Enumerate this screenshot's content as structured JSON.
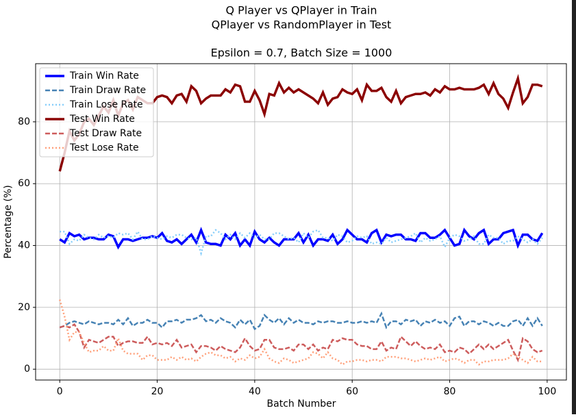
{
  "chart_data": {
    "type": "line",
    "title": [
      "Q Player vs QPlayer in Train",
      "QPlayer vs RandomPlayer in Test",
      "Epsilon = 0.7, Batch Size = 1000"
    ],
    "x_label": "Batch Number",
    "y_label": "Percentage (%)",
    "xlim": [
      -4.95,
      103.95
    ],
    "ylim": [
      -3.5,
      98.8
    ],
    "xticks": [
      0,
      20,
      40,
      60,
      80,
      100
    ],
    "yticks": [
      0,
      20,
      40,
      60,
      80
    ],
    "grid": true,
    "legend": "upper left",
    "x": [
      0,
      1,
      2,
      3,
      4,
      5,
      6,
      7,
      8,
      9,
      10,
      11,
      12,
      13,
      14,
      15,
      16,
      17,
      18,
      19,
      20,
      21,
      22,
      23,
      24,
      25,
      26,
      27,
      28,
      29,
      30,
      31,
      32,
      33,
      34,
      35,
      36,
      37,
      38,
      39,
      40,
      41,
      42,
      43,
      44,
      45,
      46,
      47,
      48,
      49,
      50,
      51,
      52,
      53,
      54,
      55,
      56,
      57,
      58,
      59,
      60,
      61,
      62,
      63,
      64,
      65,
      66,
      67,
      68,
      69,
      70,
      71,
      72,
      73,
      74,
      75,
      76,
      77,
      78,
      79,
      80,
      81,
      82,
      83,
      84,
      85,
      86,
      87,
      88,
      89,
      90,
      91,
      92,
      93,
      94,
      95,
      96,
      97,
      98,
      99
    ],
    "series": [
      {
        "name": "Train Win Rate",
        "color": "#0000ff",
        "style": "solid",
        "values": [
          42,
          41,
          44,
          43,
          43.5,
          42,
          42.5,
          42.5,
          42,
          42,
          43.5,
          43,
          39.5,
          42,
          42,
          41.5,
          42,
          42.5,
          42.5,
          43,
          42.5,
          44,
          41.5,
          41,
          42,
          40.5,
          42,
          43.5,
          41,
          45,
          41,
          40.5,
          40.5,
          40,
          43.5,
          42,
          44,
          40,
          42,
          40,
          44.5,
          42,
          41,
          42.5,
          41,
          40,
          42,
          42,
          42,
          44,
          41,
          43.5,
          40,
          42,
          42,
          41.5,
          43.5,
          40.5,
          42,
          45,
          43.5,
          42,
          42,
          41,
          44,
          45,
          41,
          43.5,
          43,
          43.5,
          43.5,
          42,
          42,
          41.5,
          44,
          44,
          42.5,
          42.5,
          43.5,
          45,
          42.5,
          40,
          40.5,
          45,
          43,
          42,
          44,
          45,
          40.5,
          42,
          42,
          44,
          44.5,
          45,
          40,
          43.5,
          43.5,
          42,
          41.5,
          44
        ]
      },
      {
        "name": "Train Draw Rate",
        "color": "#4682b4",
        "style": "dashed",
        "values": [
          13.5,
          14,
          15,
          15.5,
          15,
          14.5,
          15.5,
          15,
          14.5,
          15,
          15,
          14.5,
          16,
          14.5,
          16.5,
          14,
          15,
          15,
          16,
          15,
          15,
          13.5,
          15.5,
          15.5,
          16,
          15,
          16,
          16,
          16.5,
          17.5,
          15.5,
          16,
          15,
          16.5,
          15.5,
          15,
          13.5,
          16,
          14.5,
          16,
          13,
          14,
          17.5,
          16,
          15,
          16.5,
          14.5,
          16.5,
          15,
          16,
          15,
          15,
          14.5,
          15.5,
          15,
          15.5,
          15.5,
          15,
          15,
          15.5,
          15,
          15,
          15.5,
          15,
          15.5,
          15,
          18,
          13.5,
          15.5,
          15.5,
          14.5,
          16,
          15.5,
          16,
          14,
          15.5,
          15,
          16,
          15,
          15.5,
          14,
          16.5,
          17,
          14,
          15.5,
          15.5,
          14.5,
          15.5,
          15,
          14,
          15,
          14,
          14,
          15.5,
          16,
          14,
          16.5,
          14,
          16.5,
          14
        ]
      },
      {
        "name": "Train Lose Rate",
        "color": "#87cefa",
        "style": "dotted",
        "values": [
          44.5,
          44.5,
          40.5,
          42,
          41.5,
          43.5,
          42.5,
          42,
          43.5,
          42.5,
          43,
          42.5,
          44,
          43.5,
          44,
          42,
          44.5,
          42,
          42,
          43,
          42.5,
          42,
          43,
          42.5,
          43.5,
          43.5,
          42.5,
          42,
          42.5,
          37.5,
          43,
          43,
          45,
          44,
          42,
          43.5,
          42,
          44,
          42.5,
          44,
          42.5,
          43.5,
          42,
          42,
          44,
          44,
          43,
          42,
          42.5,
          41,
          44,
          42.5,
          44.5,
          45,
          42.5,
          42.5,
          41.5,
          43.5,
          43,
          41,
          41.5,
          43,
          42.5,
          43,
          40.5,
          41,
          40.5,
          42.5,
          41,
          41.5,
          42,
          42.5,
          43,
          44,
          41,
          42.5,
          41.5,
          42,
          43,
          39.5,
          42.5,
          43.5,
          43,
          41.5,
          42,
          43,
          40.5,
          40.5,
          43.5,
          42.5,
          42.5,
          40.5,
          41.5,
          41.5,
          43,
          42,
          41,
          42,
          40.5,
          42.5
        ]
      },
      {
        "name": "Test Win Rate",
        "color": "#8b0000",
        "style": "solid",
        "values": [
          64,
          70,
          77,
          74,
          76,
          80,
          81,
          79,
          82,
          85,
          83,
          87,
          82,
          86,
          87,
          84,
          88,
          87,
          86,
          86,
          88,
          88.5,
          88,
          86,
          88.5,
          89,
          86.5,
          91.5,
          90,
          86,
          87.5,
          88.5,
          88.5,
          88.5,
          90.5,
          89.5,
          92,
          91.5,
          86.5,
          86.5,
          90,
          87,
          82.5,
          89,
          88.5,
          92.5,
          89.5,
          91,
          89.5,
          90.5,
          89.5,
          88.5,
          87.5,
          86,
          89.5,
          85.5,
          87.5,
          88,
          90.5,
          89.5,
          89,
          90.5,
          87,
          92,
          90,
          90,
          91,
          88,
          86.5,
          90,
          86,
          88,
          88.5,
          89,
          89,
          89.5,
          88.5,
          90.5,
          89.5,
          91.5,
          90.5,
          90.5,
          91,
          90.5,
          90.5,
          90.5,
          91,
          92,
          89,
          92.5,
          89,
          87.5,
          84.5,
          89.5,
          94,
          86,
          88,
          92,
          92,
          91.5
        ]
      },
      {
        "name": "Test Draw Rate",
        "color": "#cd5c5c",
        "style": "dashed",
        "values": [
          13.5,
          14,
          13.5,
          14.5,
          12,
          7,
          9.5,
          9,
          8.5,
          9.5,
          10.5,
          10.5,
          7.5,
          8.5,
          9,
          9,
          8.5,
          8.5,
          10.5,
          8,
          8.5,
          8,
          8.5,
          7.5,
          9.5,
          7,
          7.5,
          8,
          5.5,
          7.5,
          7.5,
          7,
          6,
          7.5,
          6.5,
          6,
          5.5,
          7,
          10,
          7.5,
          6,
          6.5,
          9.5,
          9.5,
          7,
          6.5,
          6.5,
          7,
          6,
          8,
          8,
          6.5,
          8,
          6,
          7,
          6.5,
          9.5,
          9,
          10,
          9.5,
          9.5,
          8,
          7.5,
          7.5,
          6.5,
          6.5,
          9,
          6,
          7,
          6.5,
          10.5,
          9,
          7.5,
          9,
          7.5,
          6.5,
          7,
          6.5,
          8,
          5.5,
          6,
          5.5,
          7,
          6.5,
          5,
          6.5,
          8,
          6.5,
          8,
          6.5,
          7.5,
          8.5,
          9.5,
          6,
          3,
          10,
          9,
          6.5,
          5.5,
          6
        ]
      },
      {
        "name": "Test Lose Rate",
        "color": "#ffa07a",
        "style": "dotted",
        "values": [
          22.5,
          17,
          9.5,
          12,
          12,
          8.5,
          5.5,
          6,
          6,
          7.5,
          6,
          6,
          10,
          6,
          5,
          5,
          5,
          3,
          4.5,
          4.5,
          3,
          3,
          3,
          4,
          3,
          4,
          3,
          3.5,
          2.5,
          4,
          5,
          5.5,
          4.5,
          4.5,
          3.5,
          4,
          2.5,
          3.5,
          3,
          4.5,
          3.5,
          4,
          6.5,
          3.5,
          2.5,
          2,
          3.5,
          3,
          2,
          2.5,
          3,
          3.5,
          5.5,
          5,
          3.5,
          5.5,
          3.5,
          3,
          1.5,
          2.5,
          2.5,
          3,
          3,
          2.5,
          3,
          3,
          2.5,
          4,
          4,
          4,
          3.5,
          3.5,
          3,
          2.5,
          3,
          3.5,
          3,
          3.5,
          4,
          2.5,
          3,
          3.5,
          3,
          2,
          3,
          3,
          1.5,
          2.5,
          2.5,
          3,
          3,
          3,
          3.5,
          5,
          4,
          3,
          2,
          4,
          2.5,
          2.5
        ]
      }
    ]
  }
}
